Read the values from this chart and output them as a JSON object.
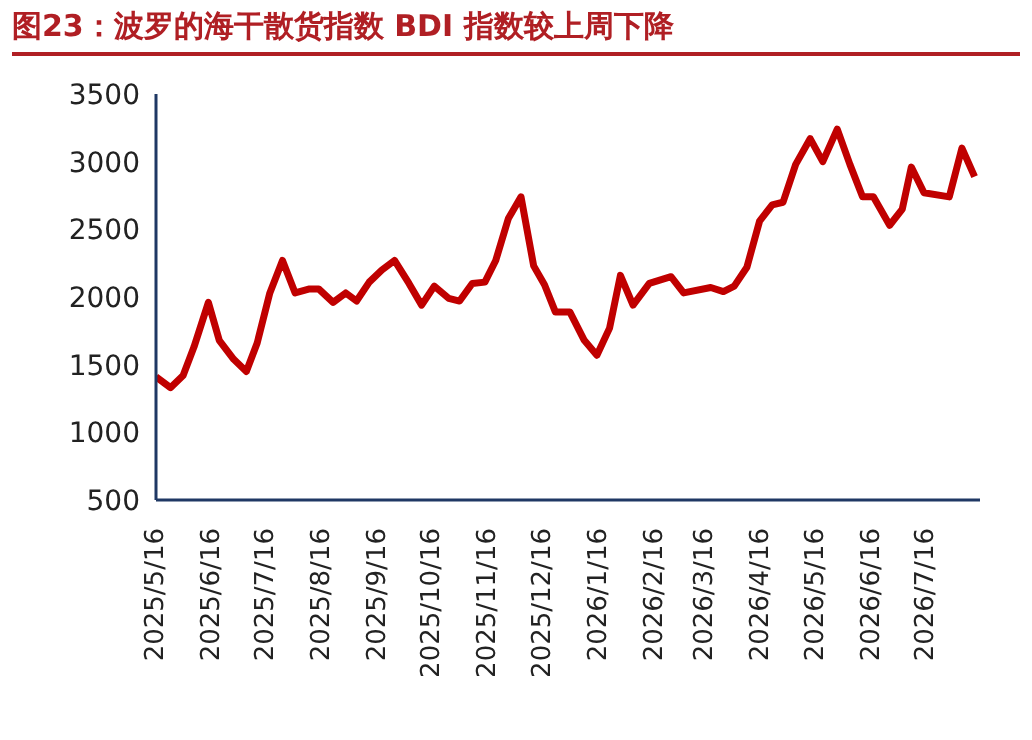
{
  "chart_data": {
    "type": "line",
    "title": "图23：波罗的海干散货指数 BDI 指数较上周下降",
    "x": [
      "2025-05-16",
      "2025-05-24",
      "2025-05-31",
      "2025-06-06",
      "2025-06-14",
      "2025-06-20",
      "2025-06-28",
      "2025-07-05",
      "2025-07-11",
      "2025-07-18",
      "2025-07-25",
      "2025-08-01",
      "2025-08-09",
      "2025-08-14",
      "2025-08-22",
      "2025-08-29",
      "2025-09-04",
      "2025-09-11",
      "2025-09-18",
      "2025-09-25",
      "2025-10-03",
      "2025-10-10",
      "2025-10-17",
      "2025-10-25",
      "2025-10-31",
      "2025-11-07",
      "2025-11-14",
      "2025-11-20",
      "2025-11-27",
      "2025-12-04",
      "2025-12-11",
      "2025-12-17",
      "2025-12-23",
      "2025-12-31",
      "2026-01-08",
      "2026-01-15",
      "2026-01-22",
      "2026-01-28",
      "2026-02-04",
      "2026-02-13",
      "2026-02-25",
      "2026-03-04",
      "2026-03-19",
      "2026-03-26",
      "2026-04-01",
      "2026-04-08",
      "2026-04-15",
      "2026-04-22",
      "2026-04-28",
      "2026-05-05",
      "2026-05-13",
      "2026-05-20",
      "2026-05-28",
      "2026-06-04",
      "2026-06-11",
      "2026-06-17",
      "2026-06-26",
      "2026-07-03",
      "2026-07-08",
      "2026-07-15",
      "2026-07-29",
      "2026-08-05",
      "2026-08-12"
    ],
    "series": [
      {
        "color": "#c00000",
        "values": [
          1410,
          1330,
          1420,
          1630,
          1960,
          1680,
          1540,
          1450,
          1660,
          2030,
          2270,
          2030,
          2060,
          2060,
          1960,
          2030,
          1970,
          2110,
          2200,
          2270,
          2100,
          1940,
          2080,
          1990,
          1970,
          2100,
          2110,
          2270,
          2580,
          2740,
          2230,
          2090,
          1890,
          1890,
          1680,
          1570,
          1770,
          2160,
          1940,
          2100,
          2150,
          2030,
          2070,
          2040,
          2080,
          2220,
          2560,
          2680,
          2700,
          2980,
          3170,
          3000,
          3240,
          2980,
          2740,
          2740,
          2530,
          2650,
          2960,
          2770,
          2740,
          3100,
          2890
        ]
      }
    ],
    "xlim": [
      "2025-05-16",
      "2026-08-15"
    ],
    "xticks": [
      {
        "value": "2025-05-16",
        "label": "2025/5/16"
      },
      {
        "value": "2025-06-16",
        "label": "2025/6/16"
      },
      {
        "value": "2025-07-16",
        "label": "2025/7/16"
      },
      {
        "value": "2025-08-16",
        "label": "2025/8/16"
      },
      {
        "value": "2025-09-16",
        "label": "2025/9/16"
      },
      {
        "value": "2025-10-16",
        "label": "2025/10/16"
      },
      {
        "value": "2025-11-16",
        "label": "2025/11/16"
      },
      {
        "value": "2025-12-16",
        "label": "2025/12/16"
      },
      {
        "value": "2026-01-16",
        "label": "2026/1/16"
      },
      {
        "value": "2026-02-16",
        "label": "2026/2/16"
      },
      {
        "value": "2026-03-16",
        "label": "2026/3/16"
      },
      {
        "value": "2026-04-16",
        "label": "2026/4/16"
      },
      {
        "value": "2026-05-16",
        "label": "2026/5/16"
      },
      {
        "value": "2026-06-16",
        "label": "2026/6/16"
      },
      {
        "value": "2026-07-16",
        "label": "2026/7/16"
      }
    ],
    "ylim": [
      500,
      3500
    ],
    "yticks": [
      500,
      1000,
      1500,
      2000,
      2500,
      3000,
      3500
    ]
  }
}
